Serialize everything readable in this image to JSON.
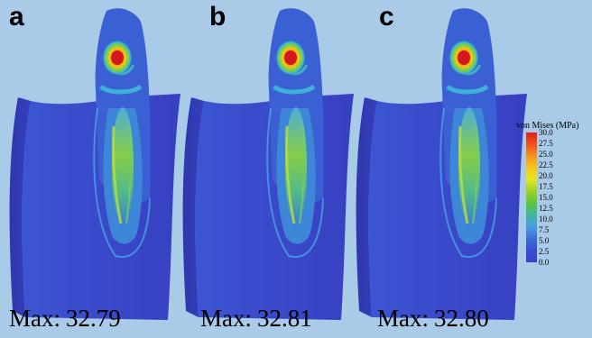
{
  "panels": [
    {
      "letter": "a",
      "max_prefix": "Max:",
      "max_value": "32.79"
    },
    {
      "letter": "b",
      "max_prefix": "Max:",
      "max_value": "32.81"
    },
    {
      "letter": "c",
      "max_prefix": "Max:",
      "max_value": "32.80"
    }
  ],
  "legend": {
    "title": "von Mises (MPa)",
    "ticks": [
      "30.0",
      "27.5",
      "25.0",
      "22.5",
      "20.0",
      "17.5",
      "15.0",
      "12.5",
      "10.0",
      "7.5",
      "5.0",
      "2.5",
      "0.0"
    ]
  },
  "colors": {
    "background": "#a9cbe8",
    "block": "#3a44c4",
    "peak_stress": "#e0201b"
  }
}
